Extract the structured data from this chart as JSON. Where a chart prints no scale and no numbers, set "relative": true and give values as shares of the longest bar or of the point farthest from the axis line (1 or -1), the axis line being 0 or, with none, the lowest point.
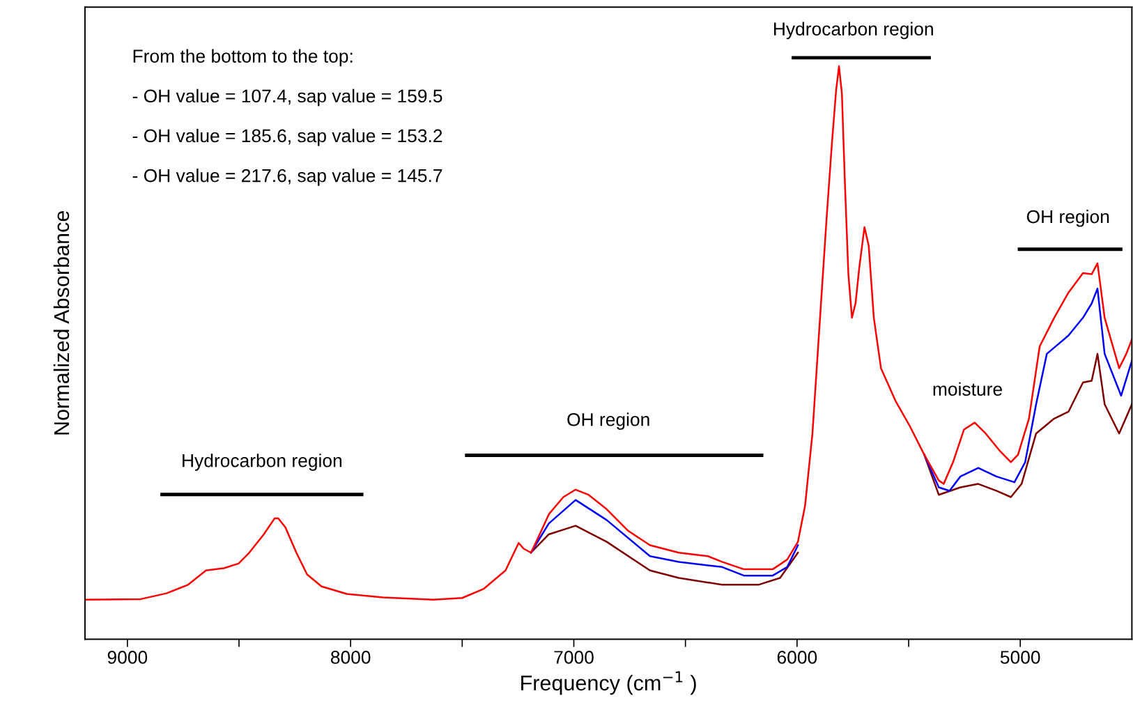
{
  "chart_data": {
    "type": "line",
    "relative": true,
    "xlabel": "Frequency (cm$^{−1}$ )",
    "ylabel": "Normalized Absorbance",
    "xlim": [
      9190,
      4500
    ],
    "xticks": [
      9000,
      {
        "value": 8500,
        "label": null
      },
      8000,
      {
        "value": 7500,
        "label": null
      },
      7000,
      {
        "value": 6500,
        "label": null
      },
      6000,
      {
        "value": 5500,
        "label": null
      },
      5000
    ],
    "grid": false,
    "legend": false,
    "line_style": "solid",
    "marker": "none",
    "series": [
      {
        "color": "#800000",
        "x": [
          7192,
          7112,
          6992,
          6853,
          6659,
          6530,
          6336,
          6173,
          6076,
          5996
        ],
        "values": [
          0.151,
          0.183,
          0.198,
          0.17,
          0.12,
          0.107,
          0.095,
          0.095,
          0.107,
          0.151
        ]
      },
      {
        "color": "#800000",
        "x": [
          5430,
          5365,
          5268,
          5188,
          5107,
          5042,
          4994,
          4929,
          4848,
          4784,
          4719,
          4680,
          4654,
          4622,
          4557,
          4500
        ],
        "values": [
          0.322,
          0.252,
          0.265,
          0.271,
          0.259,
          0.248,
          0.271,
          0.359,
          0.385,
          0.397,
          0.448,
          0.451,
          0.498,
          0.41,
          0.359,
          0.41
        ]
      },
      {
        "color": "#0000ff",
        "x": [
          7192,
          7112,
          6992,
          6853,
          6659,
          6530,
          6336,
          6238,
          6109,
          6044,
          5996
        ],
        "values": [
          0.151,
          0.202,
          0.243,
          0.208,
          0.145,
          0.135,
          0.126,
          0.111,
          0.111,
          0.126,
          0.164
        ]
      },
      {
        "color": "#0000ff",
        "x": [
          5430,
          5365,
          5317,
          5268,
          5188,
          5107,
          5026,
          4978,
          4929,
          4881,
          4784,
          4719,
          4680,
          4654,
          4622,
          4548,
          4500
        ],
        "values": [
          0.322,
          0.265,
          0.259,
          0.284,
          0.299,
          0.284,
          0.274,
          0.309,
          0.41,
          0.498,
          0.53,
          0.561,
          0.586,
          0.612,
          0.498,
          0.425,
          0.486
        ]
      },
      {
        "color": "#ff0000",
        "x": [
          9190,
          8940,
          8825,
          8728,
          8648,
          8567,
          8502,
          8454,
          8389,
          8340,
          8324,
          8292,
          8243,
          8195,
          8130,
          8017,
          7855,
          7629,
          7500,
          7403,
          7306,
          7247,
          7225,
          7192,
          7160,
          7112,
          7047,
          6992,
          6934,
          6853,
          6756,
          6659,
          6530,
          6400,
          6336,
          6238,
          6109,
          6044,
          5996,
          5964,
          5931,
          5899,
          5867,
          5844,
          5825,
          5812,
          5799,
          5786,
          5770,
          5754,
          5738,
          5721,
          5698,
          5679,
          5656,
          5624,
          5559,
          5495,
          5430,
          5365,
          5343,
          5301,
          5252,
          5204,
          5155,
          5090,
          5042,
          5010,
          4961,
          4913,
          4848,
          4784,
          4719,
          4680,
          4654,
          4622,
          4557,
          4525,
          4500
        ],
        "values": [
          0.069,
          0.07,
          0.08,
          0.095,
          0.12,
          0.124,
          0.132,
          0.151,
          0.183,
          0.211,
          0.211,
          0.195,
          0.151,
          0.113,
          0.092,
          0.079,
          0.073,
          0.069,
          0.072,
          0.088,
          0.12,
          0.168,
          0.158,
          0.151,
          0.177,
          0.218,
          0.248,
          0.261,
          0.252,
          0.227,
          0.189,
          0.164,
          0.151,
          0.145,
          0.135,
          0.122,
          0.122,
          0.139,
          0.17,
          0.233,
          0.359,
          0.549,
          0.738,
          0.864,
          0.958,
          1.0,
          0.952,
          0.801,
          0.637,
          0.561,
          0.586,
          0.649,
          0.719,
          0.687,
          0.561,
          0.473,
          0.416,
          0.372,
          0.322,
          0.277,
          0.271,
          0.309,
          0.366,
          0.378,
          0.359,
          0.328,
          0.309,
          0.322,
          0.385,
          0.511,
          0.561,
          0.605,
          0.639,
          0.637,
          0.656,
          0.561,
          0.473,
          0.498,
          0.523
        ]
      }
    ],
    "annotations": [
      "From the bottom to the top:",
      "- OH value = 107.4, sap value = 159.5",
      "- OH value = 185.6, sap value = 153.2",
      "- OH value = 217.6, sap value = 145.7",
      "Hydrocarbon region",
      "OH region",
      "Hydrocarbon region",
      "OH region",
      "moisture"
    ]
  }
}
